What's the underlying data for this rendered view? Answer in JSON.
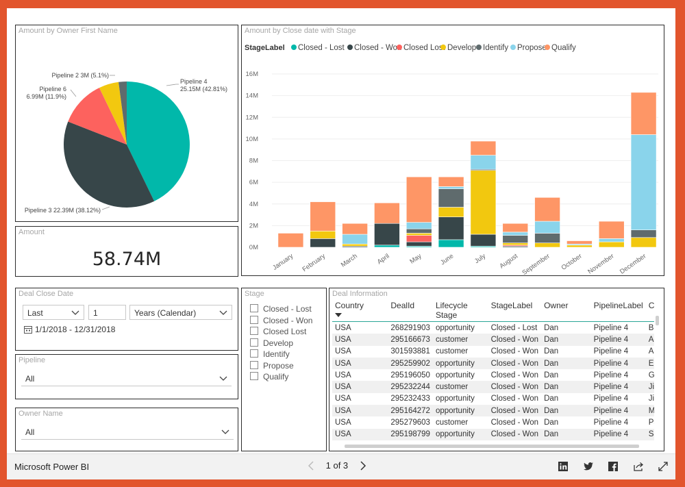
{
  "pie": {
    "title": "Amount by Owner First Name",
    "slices": [
      {
        "name": "Pipeline 4",
        "amount": "25.15M",
        "pct": 42.81,
        "pct_label": "(42.81%)",
        "color": "#01b8aa"
      },
      {
        "name": "Pipeline 3",
        "amount": "22.39M",
        "pct": 38.12,
        "pct_label": "(38.12%)",
        "color": "#374649"
      },
      {
        "name": "Pipeline 6",
        "amount": "6.99M",
        "pct": 11.9,
        "pct_label": "(11.9%)",
        "color": "#fd625e"
      },
      {
        "name": "Pipeline 2",
        "amount": "3M",
        "pct": 5.1,
        "pct_label": "(5.1%)",
        "color": "#f2c80f"
      },
      {
        "name": "",
        "amount": "",
        "pct": 2.07,
        "pct_label": "",
        "color": "#5f6b6d"
      }
    ],
    "labels": {
      "p4a": "Pipeline 4",
      "p4b": "25.15M (42.81%)",
      "p3": "Pipeline 3 22.39M (38.12%)",
      "p6a": "Pipeline 6",
      "p6b": "6.99M (11.9%)",
      "p2": "Pipeline 2 3M (5.1%)"
    }
  },
  "card": {
    "title": "Amount",
    "value": "58.74M"
  },
  "chart_data": {
    "type": "bar",
    "stacked": true,
    "title": "Amount by Close date with Stage",
    "legend_title": "StageLabel",
    "legend_position": "top-left",
    "ylim": [
      0,
      16
    ],
    "yticks": [
      "0M",
      "2M",
      "4M",
      "6M",
      "8M",
      "10M",
      "12M",
      "14M",
      "16M"
    ],
    "categories": [
      "January",
      "February",
      "March",
      "April",
      "May",
      "June",
      "July",
      "August",
      "September",
      "October",
      "November",
      "December"
    ],
    "series": [
      {
        "name": "Closed - Lost",
        "color": "#01b8aa",
        "values": [
          0,
          0,
          0,
          0.2,
          0.1,
          0.7,
          0.1,
          0,
          0,
          0,
          0,
          0
        ]
      },
      {
        "name": "Closed - Won",
        "color": "#374649",
        "values": [
          0,
          0.8,
          0.1,
          2.0,
          0.4,
          2.1,
          1.1,
          0.1,
          0,
          0,
          0,
          0
        ]
      },
      {
        "name": "Closed Lost",
        "color": "#fd625e",
        "values": [
          0,
          0,
          0,
          0,
          0.6,
          0,
          0,
          0.1,
          0,
          0,
          0,
          0
        ]
      },
      {
        "name": "Develop",
        "color": "#f2c80f",
        "values": [
          0,
          0.7,
          0.2,
          0,
          0.2,
          0.9,
          5.9,
          0.2,
          0.4,
          0.2,
          0.5,
          0.9
        ]
      },
      {
        "name": "Identify",
        "color": "#5f6b6d",
        "values": [
          0,
          0,
          0,
          0,
          0.4,
          1.7,
          0.1,
          0.7,
          0.9,
          0,
          0,
          0.7
        ]
      },
      {
        "name": "Propose",
        "color": "#8ad4eb",
        "values": [
          0,
          0,
          0.9,
          0,
          0.6,
          0.2,
          1.3,
          0.3,
          1.1,
          0.1,
          0.3,
          8.8
        ]
      },
      {
        "name": "Qualify",
        "color": "#fe9666",
        "values": [
          1.3,
          2.7,
          1.0,
          1.9,
          4.2,
          0.9,
          1.3,
          0.8,
          2.2,
          0.3,
          1.6,
          3.9
        ]
      }
    ]
  },
  "date_slicer": {
    "title": "Deal Close Date",
    "mode": "Last",
    "count": "1",
    "unit": "Years (Calendar)",
    "range": "1/1/2018 - 12/31/2018"
  },
  "pipeline_slicer": {
    "title": "Pipeline",
    "value": "All"
  },
  "owner_slicer": {
    "title": "Owner Name",
    "value": "All"
  },
  "stage_slicer": {
    "title": "Stage",
    "items": [
      "Closed - Lost",
      "Closed - Won",
      "Closed Lost",
      "Develop",
      "Identify",
      "Propose",
      "Qualify"
    ]
  },
  "table": {
    "title": "Deal Information",
    "columns": [
      "Country",
      "DealId",
      "Lifecycle Stage",
      "StageLabel",
      "Owner",
      "PipelineLabel",
      "Co"
    ],
    "rows": [
      [
        "USA",
        "268291903",
        "opportunity",
        "Closed - Lost",
        "Dan",
        "Pipeline 4",
        "Br"
      ],
      [
        "USA",
        "295166673",
        "customer",
        "Closed - Won",
        "Dan",
        "Pipeline 4",
        "Ac"
      ],
      [
        "USA",
        "301593881",
        "customer",
        "Closed - Won",
        "Dan",
        "Pipeline 4",
        "Ar"
      ],
      [
        "USA",
        "295259902",
        "opportunity",
        "Closed - Won",
        "Dan",
        "Pipeline 4",
        "Er"
      ],
      [
        "USA",
        "295196050",
        "opportunity",
        "Closed - Won",
        "Dan",
        "Pipeline 4",
        "Gr"
      ],
      [
        "USA",
        "295232244",
        "customer",
        "Closed - Won",
        "Dan",
        "Pipeline 4",
        "Jir"
      ],
      [
        "USA",
        "295232433",
        "opportunity",
        "Closed - Won",
        "Dan",
        "Pipeline 4",
        "Jir"
      ],
      [
        "USA",
        "295164272",
        "opportunity",
        "Closed - Won",
        "Dan",
        "Pipeline 4",
        "M"
      ],
      [
        "USA",
        "295279603",
        "customer",
        "Closed - Won",
        "Dan",
        "Pipeline 4",
        "Pa"
      ],
      [
        "USA",
        "295198799",
        "opportunity",
        "Closed - Won",
        "Dan",
        "Pipeline 4",
        "Sa"
      ]
    ]
  },
  "footer": {
    "brand": "Microsoft Power BI",
    "page": "1 of 3"
  },
  "icons": [
    "linkedin-icon",
    "twitter-icon",
    "facebook-icon",
    "share-icon",
    "fullscreen-icon"
  ]
}
